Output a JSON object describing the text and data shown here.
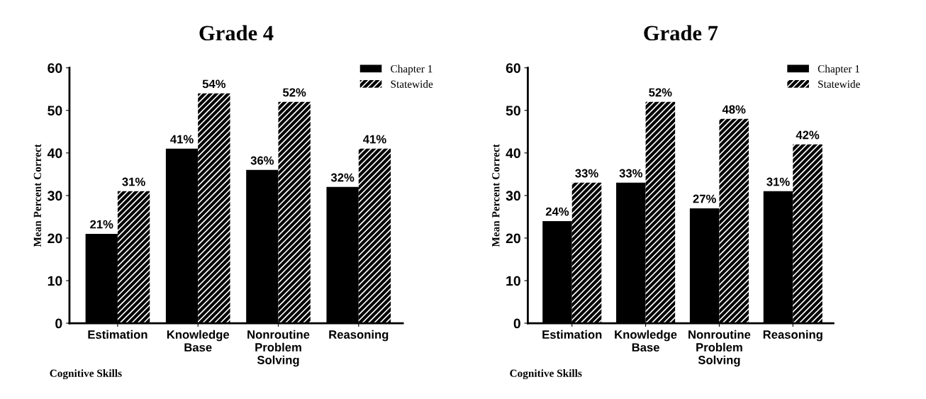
{
  "chart_data": [
    {
      "type": "bar",
      "title": "Grade 4",
      "xlabel": "Cognitive Skills",
      "ylabel": "Mean Percent Correct",
      "categories": [
        "Estimation",
        "Knowledge\nBase",
        "Nonroutine\nProblem\nSolving",
        "Reasoning"
      ],
      "series": [
        {
          "name": "Chapter 1",
          "color": "#000000",
          "values": [
            21,
            41,
            36,
            32
          ],
          "value_labels": [
            "21%",
            "41%",
            "36%",
            "32%"
          ]
        },
        {
          "name": "Statewide",
          "color": "#000000",
          "values": [
            31,
            54,
            52,
            41
          ],
          "value_labels": [
            "31%",
            "54%",
            "52%",
            "41%"
          ]
        }
      ],
      "ylim": [
        0,
        60
      ],
      "yticks": [
        0,
        10,
        20,
        30,
        40,
        50,
        60
      ],
      "grid": false,
      "legend": "top right"
    },
    {
      "type": "bar",
      "title": "Grade 7",
      "xlabel": "Cognitive Skills",
      "ylabel": "Mean Percent Correct",
      "categories": [
        "Estimation",
        "Knowledge\nBase",
        "Nonroutine\nProblem\nSolving",
        "Reasoning"
      ],
      "series": [
        {
          "name": "Chapter 1",
          "color": "#000000",
          "values": [
            24,
            33,
            27,
            31
          ],
          "value_labels": [
            "24%",
            "33%",
            "27%",
            "31%"
          ]
        },
        {
          "name": "Statewide",
          "color": "#000000",
          "values": [
            33,
            52,
            48,
            42
          ],
          "value_labels": [
            "33%",
            "52%",
            "48%",
            "42%"
          ]
        }
      ],
      "ylim": [
        0,
        60
      ],
      "yticks": [
        0,
        10,
        20,
        30,
        40,
        50,
        60
      ],
      "grid": false,
      "legend": "top right"
    }
  ]
}
